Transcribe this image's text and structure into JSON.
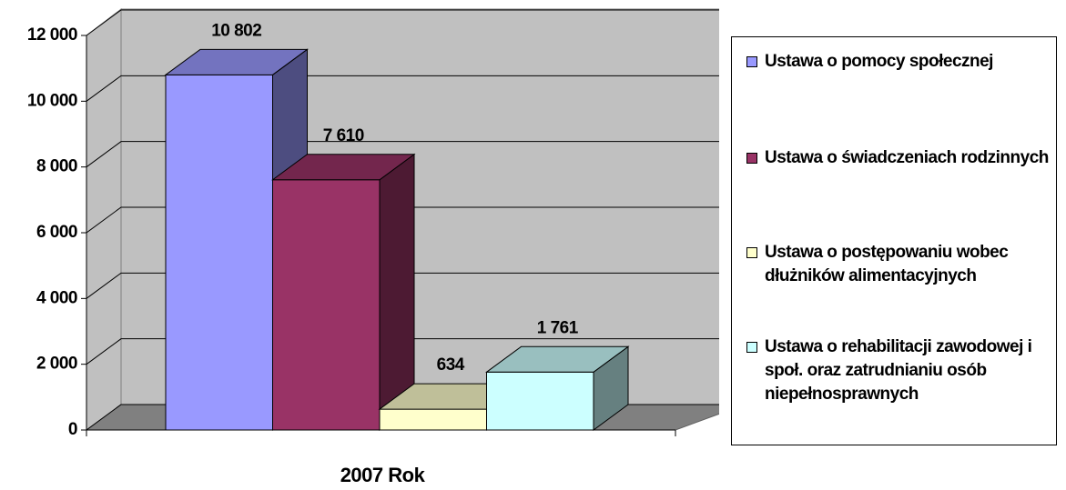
{
  "chart_data": {
    "type": "bar",
    "categories": [
      "2007 Rok"
    ],
    "series": [
      {
        "name": "Ustawa o pomocy społecznej",
        "color": "#9999ff",
        "values": [
          10802
        ],
        "value_labels": [
          "10 802"
        ]
      },
      {
        "name": "Ustawa o świadczeniach rodzinnych",
        "color": "#993366",
        "values": [
          7610
        ],
        "value_labels": [
          "7 610"
        ]
      },
      {
        "name": "Ustawa o postępowaniu wobec dłużników alimentacyjnych",
        "color": "#ffffcc",
        "values": [
          634
        ],
        "value_labels": [
          "634"
        ]
      },
      {
        "name": "Ustawa o rehabilitacji zawodowej i społ. oraz zatrudnianiu osób niepełnosprawnych",
        "color": "#ccffff",
        "values": [
          1761
        ],
        "value_labels": [
          "1 761"
        ]
      }
    ],
    "ylim": [
      0,
      12000
    ],
    "yticks": [
      0,
      {
        "value": 2000,
        "label": "2 000"
      },
      {
        "value": 4000,
        "label": "4 000"
      },
      {
        "value": 6000,
        "label": "6 000"
      },
      {
        "value": 8000,
        "label": "8 000"
      },
      {
        "value": 10000,
        "label": "10 000"
      },
      {
        "value": 12000,
        "label": "12 000"
      }
    ],
    "grid": true,
    "legend": "right"
  }
}
